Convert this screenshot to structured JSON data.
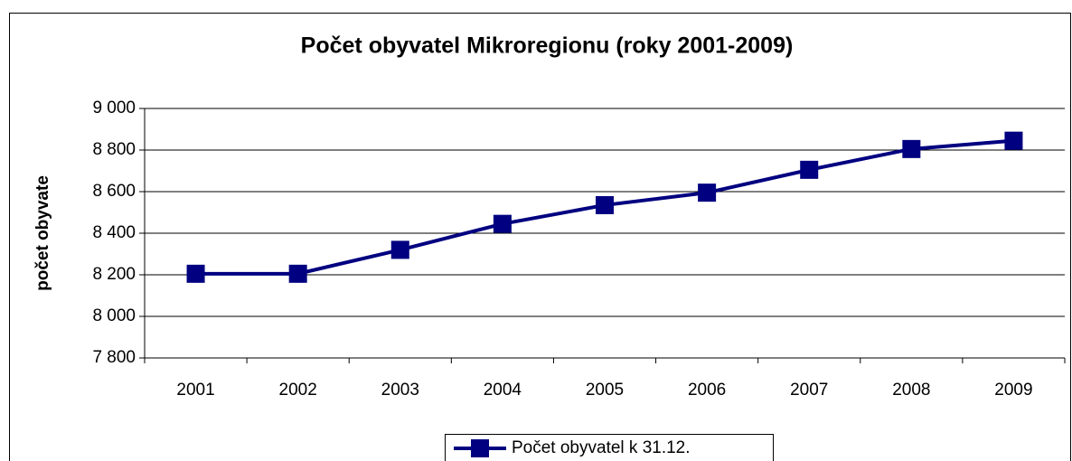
{
  "chart_data": {
    "type": "line",
    "title": "Počet obyvatel Mikroregionu (roky 2001-2009)",
    "y_label": "počet obyvate",
    "categories": [
      "2001",
      "2002",
      "2003",
      "2004",
      "2005",
      "2006",
      "2007",
      "2008",
      "2009"
    ],
    "series": [
      {
        "name": "Počet obyvatel k 31.12.",
        "color": "#000080",
        "values": [
          8205,
          8205,
          8320,
          8445,
          8535,
          8595,
          8705,
          8805,
          8845
        ]
      }
    ],
    "ylim": [
      7800,
      9000
    ],
    "yticks": [
      {
        "value": 7800,
        "label": "7 800"
      },
      {
        "value": 8000,
        "label": "8 000"
      },
      {
        "value": 8200,
        "label": "8 200"
      },
      {
        "value": 8400,
        "label": "8 400"
      },
      {
        "value": 8600,
        "label": "8 600"
      },
      {
        "value": 8800,
        "label": "8 800"
      },
      {
        "value": 9000,
        "label": "9 000"
      }
    ],
    "grid": true,
    "legend": "bottom"
  }
}
